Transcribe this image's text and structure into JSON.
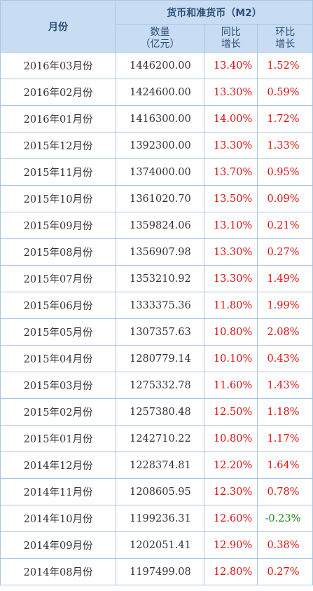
{
  "header": {
    "month": "月份",
    "group": "货币和准货币（M2）",
    "qty_line1": "数量",
    "qty_line2": "（亿元）",
    "yoy_line1": "同比",
    "yoy_line2": "增长",
    "mom_line1": "环比",
    "mom_line2": "增长"
  },
  "colors": {
    "header_bg": "#c8dcf3",
    "border": "#a9c6e2",
    "positive": "#d9110f",
    "negative": "#1a8a1a"
  },
  "rows": [
    {
      "month": "2016年03月份",
      "qty": "1446200.00",
      "yoy": "13.40%",
      "mom": "1.52%"
    },
    {
      "month": "2016年02月份",
      "qty": "1424600.00",
      "yoy": "13.30%",
      "mom": "0.59%"
    },
    {
      "month": "2016年01月份",
      "qty": "1416300.00",
      "yoy": "14.00%",
      "mom": "1.72%"
    },
    {
      "month": "2015年12月份",
      "qty": "1392300.00",
      "yoy": "13.30%",
      "mom": "1.33%"
    },
    {
      "month": "2015年11月份",
      "qty": "1374000.00",
      "yoy": "13.70%",
      "mom": "0.95%"
    },
    {
      "month": "2015年10月份",
      "qty": "1361020.70",
      "yoy": "13.50%",
      "mom": "0.09%"
    },
    {
      "month": "2015年09月份",
      "qty": "1359824.06",
      "yoy": "13.10%",
      "mom": "0.21%"
    },
    {
      "month": "2015年08月份",
      "qty": "1356907.98",
      "yoy": "13.30%",
      "mom": "0.27%"
    },
    {
      "month": "2015年07月份",
      "qty": "1353210.92",
      "yoy": "13.30%",
      "mom": "1.49%"
    },
    {
      "month": "2015年06月份",
      "qty": "1333375.36",
      "yoy": "11.80%",
      "mom": "1.99%"
    },
    {
      "month": "2015年05月份",
      "qty": "1307357.63",
      "yoy": "10.80%",
      "mom": "2.08%"
    },
    {
      "month": "2015年04月份",
      "qty": "1280779.14",
      "yoy": "10.10%",
      "mom": "0.43%"
    },
    {
      "month": "2015年03月份",
      "qty": "1275332.78",
      "yoy": "11.60%",
      "mom": "1.43%"
    },
    {
      "month": "2015年02月份",
      "qty": "1257380.48",
      "yoy": "12.50%",
      "mom": "1.18%"
    },
    {
      "month": "2015年01月份",
      "qty": "1242710.22",
      "yoy": "10.80%",
      "mom": "1.17%"
    },
    {
      "month": "2014年12月份",
      "qty": "1228374.81",
      "yoy": "12.20%",
      "mom": "1.64%"
    },
    {
      "month": "2014年11月份",
      "qty": "1208605.95",
      "yoy": "12.30%",
      "mom": "0.78%"
    },
    {
      "month": "2014年10月份",
      "qty": "1199236.31",
      "yoy": "12.60%",
      "mom": "-0.23%"
    },
    {
      "month": "2014年09月份",
      "qty": "1202051.41",
      "yoy": "12.90%",
      "mom": "0.38%"
    },
    {
      "month": "2014年08月份",
      "qty": "1197499.08",
      "yoy": "12.80%",
      "mom": "0.27%"
    }
  ]
}
